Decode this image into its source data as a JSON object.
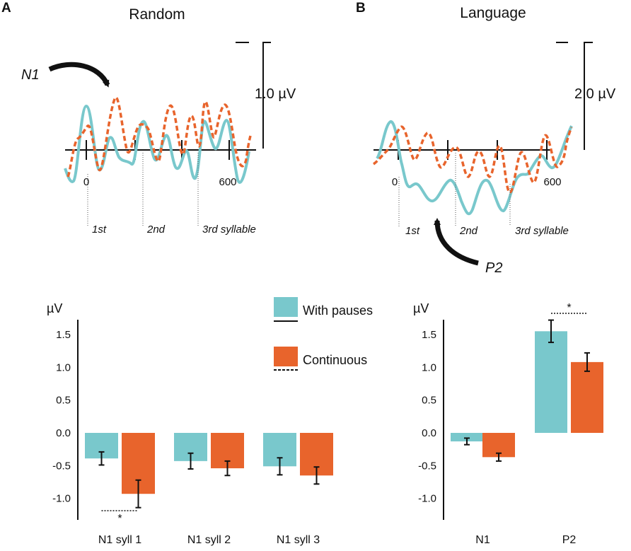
{
  "colors": {
    "with_pauses": "#79C8CC",
    "continuous": "#E8642C",
    "axis": "#111111"
  },
  "panels": {
    "a": {
      "label": "A",
      "title": "Random"
    },
    "b": {
      "label": "B",
      "title": "Language"
    }
  },
  "erp_random": {
    "scale_label": "1.0 µV",
    "tick_zero": "0",
    "tick_600": "600",
    "syllables": [
      "1st",
      "2nd",
      "3rd syllable"
    ],
    "component_label": "N1"
  },
  "erp_language": {
    "scale_label": "2.0 µV",
    "tick_zero": "0",
    "tick_600": "600",
    "syllables": [
      "1st",
      "2nd",
      "3rd syllable"
    ],
    "component_label": "P2"
  },
  "legend": {
    "with_pauses": "With pauses",
    "continuous": "Continuous"
  },
  "chart_data": [
    {
      "type": "bar",
      "ylabel": "µV",
      "ylim": [
        -1.2,
        1.7
      ],
      "yticks": [
        "1.5",
        "1.0",
        "0.5",
        "0.0",
        "-0.5",
        "-1.0"
      ],
      "categories": [
        "N1 syll 1",
        "N1 syll 2",
        "N1 syll 3"
      ],
      "series": [
        {
          "name": "With pauses",
          "values": [
            -0.39,
            -0.43,
            -0.51
          ],
          "errors": [
            0.1,
            0.12,
            0.13
          ]
        },
        {
          "name": "Continuous",
          "values": [
            -0.93,
            -0.54,
            -0.65
          ],
          "errors": [
            0.21,
            0.11,
            0.13
          ]
        }
      ],
      "significance": [
        {
          "category_index": 0,
          "label": "*"
        }
      ]
    },
    {
      "type": "bar",
      "ylabel": "µV",
      "ylim": [
        -1.2,
        1.7
      ],
      "yticks": [
        "1.5",
        "1.0",
        "0.5",
        "0.0",
        "-0.5",
        "-1.0"
      ],
      "categories": [
        "N1",
        "P2"
      ],
      "series": [
        {
          "name": "With pauses",
          "values": [
            -0.13,
            1.55
          ],
          "errors": [
            0.05,
            0.17
          ]
        },
        {
          "name": "Continuous",
          "values": [
            -0.37,
            1.08
          ],
          "errors": [
            0.06,
            0.14
          ]
        }
      ],
      "significance": [
        {
          "category_index": 1,
          "label": "*"
        }
      ]
    }
  ]
}
